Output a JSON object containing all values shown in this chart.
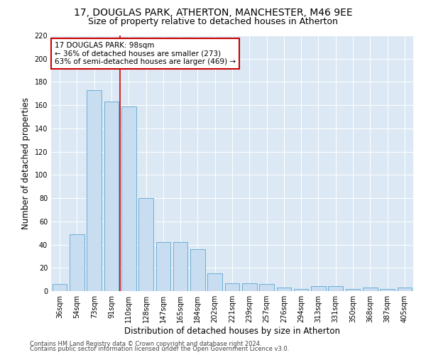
{
  "title1": "17, DOUGLAS PARK, ATHERTON, MANCHESTER, M46 9EE",
  "title2": "Size of property relative to detached houses in Atherton",
  "xlabel": "Distribution of detached houses by size in Atherton",
  "ylabel": "Number of detached properties",
  "categories": [
    "36sqm",
    "54sqm",
    "73sqm",
    "91sqm",
    "110sqm",
    "128sqm",
    "147sqm",
    "165sqm",
    "184sqm",
    "202sqm",
    "221sqm",
    "239sqm",
    "257sqm",
    "276sqm",
    "294sqm",
    "313sqm",
    "331sqm",
    "350sqm",
    "368sqm",
    "387sqm",
    "405sqm"
  ],
  "values": [
    6,
    49,
    173,
    163,
    159,
    80,
    42,
    42,
    36,
    15,
    7,
    7,
    6,
    3,
    2,
    4,
    4,
    2,
    3,
    2,
    3
  ],
  "bar_color": "#c9ddf0",
  "bar_edge_color": "#6baed6",
  "vline_x_index": 3.5,
  "vline_color": "#cc0000",
  "annotation_text": "17 DOUGLAS PARK: 98sqm\n← 36% of detached houses are smaller (273)\n63% of semi-detached houses are larger (469) →",
  "annotation_box_color": "white",
  "annotation_box_edge": "#cc0000",
  "ylim": [
    0,
    220
  ],
  "yticks": [
    0,
    20,
    40,
    60,
    80,
    100,
    120,
    140,
    160,
    180,
    200,
    220
  ],
  "footer1": "Contains HM Land Registry data © Crown copyright and database right 2024.",
  "footer2": "Contains public sector information licensed under the Open Government Licence v3.0.",
  "bg_color": "#dce9f5",
  "fig_bg_color": "#ffffff",
  "title1_fontsize": 10,
  "title2_fontsize": 9,
  "tick_fontsize": 7,
  "ylabel_fontsize": 8.5,
  "xlabel_fontsize": 8.5,
  "footer_fontsize": 6,
  "ann_fontsize": 7.5
}
